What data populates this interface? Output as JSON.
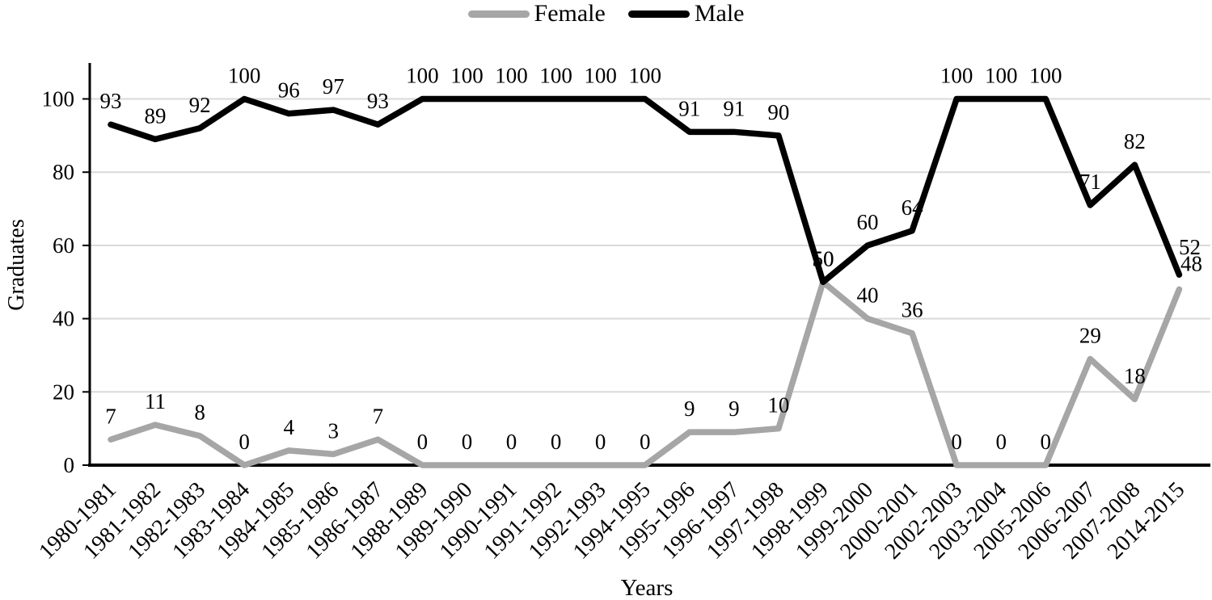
{
  "chart_data": {
    "type": "line",
    "title": "",
    "xlabel": "Years",
    "ylabel": "Graduates",
    "ylim": [
      0,
      100
    ],
    "yticks": [
      0,
      20,
      40,
      60,
      80,
      100
    ],
    "grid": true,
    "legend_position": "top",
    "categories": [
      "1980-1981",
      "1981-1982",
      "1982-1983",
      "1983-1984",
      "1984-1985",
      "1985-1986",
      "1986-1987",
      "1988-1989",
      "1989-1990",
      "1990-1991",
      "1991-1992",
      "1992-1993",
      "1994-1995",
      "1995-1996",
      "1996-1997",
      "1997-1998",
      "1998-1999",
      "1999-2000",
      "2000-2001",
      "2002-2003",
      "2003-2004",
      "2005-2006",
      "2006-2007",
      "2007-2008",
      "2014-2015"
    ],
    "series": [
      {
        "name": "Female",
        "color": "#a6a6a6",
        "values": [
          7,
          11,
          8,
          0,
          4,
          3,
          7,
          0,
          0,
          0,
          0,
          0,
          0,
          9,
          9,
          10,
          50,
          40,
          36,
          0,
          0,
          0,
          29,
          18,
          48
        ]
      },
      {
        "name": "Male",
        "color": "#000000",
        "values": [
          93,
          89,
          92,
          100,
          96,
          97,
          93,
          100,
          100,
          100,
          100,
          100,
          100,
          91,
          91,
          90,
          50,
          60,
          64,
          100,
          100,
          100,
          71,
          82,
          52
        ]
      }
    ],
    "colors": {
      "gridline": "#d9d9d9",
      "axis": "#000000",
      "text": "#000000",
      "background": "#ffffff"
    }
  }
}
